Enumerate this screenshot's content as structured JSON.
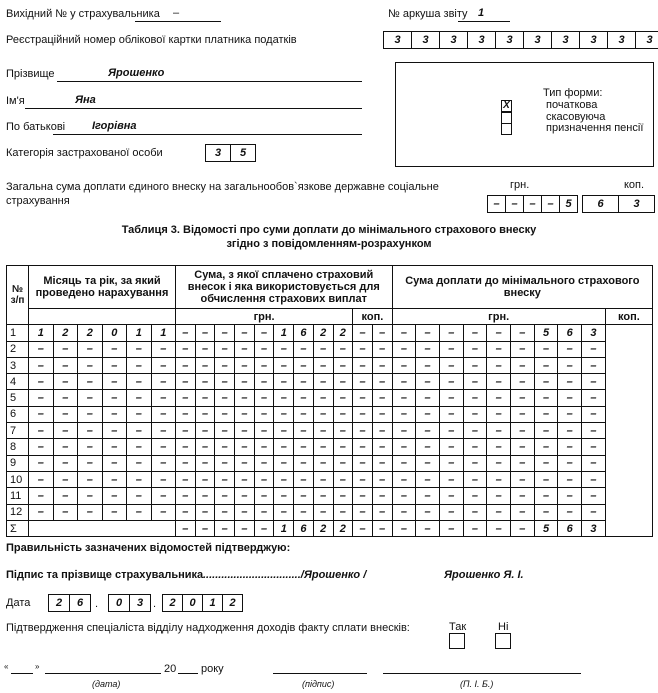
{
  "header": {
    "outgoing_label": "Вихідний № у страхувальника",
    "outgoing_value": "–",
    "sheet_label": "№ аркуша звіту",
    "sheet_value": "1"
  },
  "reg": {
    "label": "Реєстраційний номер облікової картки платника податків",
    "digits": [
      "3",
      "3",
      "3",
      "3",
      "3",
      "3",
      "3",
      "3",
      "3",
      "3"
    ]
  },
  "person": {
    "surname_label": "Прізвище",
    "surname": "Ярошенко",
    "name_label": "Ім'я",
    "name": "Яна",
    "patronymic_label": "По батькові",
    "patronymic": "Ігорівна",
    "category_label": "Категорія застрахованої особи",
    "category": [
      "3",
      "5"
    ]
  },
  "form_type": {
    "title": "Тип форми:",
    "options": [
      {
        "label": "початкова",
        "checked": true,
        "mark": "X"
      },
      {
        "label": "скасовуюча",
        "checked": false
      },
      {
        "label": "призначення пенсії",
        "checked": false
      }
    ]
  },
  "total": {
    "label1": "Загальна сума доплати єдиного внеску на загальнообов`язкове державне соціальне",
    "label2": "страхування",
    "grn_label": "грн.",
    "kop_label": "коп.",
    "grn": [
      "–",
      "–",
      "–",
      "–",
      "5"
    ],
    "kop": [
      "6",
      "3"
    ]
  },
  "table": {
    "title1": "Таблиця 3. Відомості про суми доплати до мінімального страхового внеску",
    "title2": "згідно з повідомленням-розрахунком",
    "col_no": "№ з/п",
    "col_month": "Місяць та рік, за який проведено нарахування",
    "col_sum": "Сума, з якої сплачено страховий внесок і яка використовується для обчислення страхових виплат",
    "col_extra": "Сума доплати до мінімального страхового внеску",
    "grn": "грн.",
    "kop": "коп.",
    "rows": [
      {
        "no": "1",
        "cells": [
          "1",
          "2",
          "2",
          "0",
          "1",
          "1",
          "–",
          "–",
          "–",
          "–",
          "–",
          "1",
          "6",
          "2",
          "2",
          "–",
          "–",
          "–",
          "–",
          "–",
          "–",
          "–",
          "–",
          "5",
          "6",
          "3"
        ]
      },
      {
        "no": "2",
        "cells": [
          "–",
          "–",
          "–",
          "–",
          "–",
          "–",
          "–",
          "–",
          "–",
          "–",
          "–",
          "–",
          "–",
          "–",
          "–",
          "–",
          "–",
          "–",
          "–",
          "–",
          "–",
          "–",
          "–",
          "–",
          "–",
          "–"
        ]
      },
      {
        "no": "3",
        "cells": [
          "–",
          "–",
          "–",
          "–",
          "–",
          "–",
          "–",
          "–",
          "–",
          "–",
          "–",
          "–",
          "–",
          "–",
          "–",
          "–",
          "–",
          "–",
          "–",
          "–",
          "–",
          "–",
          "–",
          "–",
          "–",
          "–"
        ]
      },
      {
        "no": "4",
        "cells": [
          "–",
          "–",
          "–",
          "–",
          "–",
          "–",
          "–",
          "–",
          "–",
          "–",
          "–",
          "–",
          "–",
          "–",
          "–",
          "–",
          "–",
          "–",
          "–",
          "–",
          "–",
          "–",
          "–",
          "–",
          "–",
          "–"
        ]
      },
      {
        "no": "5",
        "cells": [
          "–",
          "–",
          "–",
          "–",
          "–",
          "–",
          "–",
          "–",
          "–",
          "–",
          "–",
          "–",
          "–",
          "–",
          "–",
          "–",
          "–",
          "–",
          "–",
          "–",
          "–",
          "–",
          "–",
          "–",
          "–",
          "–"
        ]
      },
      {
        "no": "6",
        "cells": [
          "–",
          "–",
          "–",
          "–",
          "–",
          "–",
          "–",
          "–",
          "–",
          "–",
          "–",
          "–",
          "–",
          "–",
          "–",
          "–",
          "–",
          "–",
          "–",
          "–",
          "–",
          "–",
          "–",
          "–",
          "–",
          "–"
        ]
      },
      {
        "no": "7",
        "cells": [
          "–",
          "–",
          "–",
          "–",
          "–",
          "–",
          "–",
          "–",
          "–",
          "–",
          "–",
          "–",
          "–",
          "–",
          "–",
          "–",
          "–",
          "–",
          "–",
          "–",
          "–",
          "–",
          "–",
          "–",
          "–",
          "–"
        ]
      },
      {
        "no": "8",
        "cells": [
          "–",
          "–",
          "–",
          "–",
          "–",
          "–",
          "–",
          "–",
          "–",
          "–",
          "–",
          "–",
          "–",
          "–",
          "–",
          "–",
          "–",
          "–",
          "–",
          "–",
          "–",
          "–",
          "–",
          "–",
          "–",
          "–"
        ]
      },
      {
        "no": "9",
        "cells": [
          "–",
          "–",
          "–",
          "–",
          "–",
          "–",
          "–",
          "–",
          "–",
          "–",
          "–",
          "–",
          "–",
          "–",
          "–",
          "–",
          "–",
          "–",
          "–",
          "–",
          "–",
          "–",
          "–",
          "–",
          "–",
          "–"
        ]
      },
      {
        "no": "10",
        "cells": [
          "–",
          "–",
          "–",
          "–",
          "–",
          "–",
          "–",
          "–",
          "–",
          "–",
          "–",
          "–",
          "–",
          "–",
          "–",
          "–",
          "–",
          "–",
          "–",
          "–",
          "–",
          "–",
          "–",
          "–",
          "–",
          "–"
        ]
      },
      {
        "no": "11",
        "cells": [
          "–",
          "–",
          "–",
          "–",
          "–",
          "–",
          "–",
          "–",
          "–",
          "–",
          "–",
          "–",
          "–",
          "–",
          "–",
          "–",
          "–",
          "–",
          "–",
          "–",
          "–",
          "–",
          "–",
          "–",
          "–",
          "–"
        ]
      },
      {
        "no": "12",
        "cells": [
          "–",
          "–",
          "–",
          "–",
          "–",
          "–",
          "–",
          "–",
          "–",
          "–",
          "–",
          "–",
          "–",
          "–",
          "–",
          "–",
          "–",
          "–",
          "–",
          "–",
          "–",
          "–",
          "–",
          "–",
          "–",
          "–"
        ]
      }
    ],
    "sum_row": {
      "no": "Σ",
      "cells": [
        "–",
        "–",
        "–",
        "–",
        "–",
        "1",
        "6",
        "2",
        "2",
        "–",
        "–",
        "–",
        "–",
        "–",
        "–",
        "–",
        "–",
        "5",
        "6",
        "3"
      ]
    }
  },
  "footer": {
    "confirm": "Правильність зазначених відомостей підтверджую:",
    "sign_label": "Підпис та прізвище страхувальника",
    "sign_dots": "................................/Ярошенко /",
    "sign_name": "Ярошенко Я. І.",
    "date_label": "Дата",
    "day": [
      "2",
      "6"
    ],
    "month": [
      "0",
      "3"
    ],
    "year": [
      "2",
      "0",
      "1",
      "2"
    ],
    "dot": ".",
    "specialist": "Підтвердження спеціаліста відділу надходження доходів факту сплати внесків:",
    "yes": "Так",
    "no": "Ні",
    "q_open": "«",
    "q_close": "»",
    "century": "20",
    "year_word": "року",
    "cap_date": "(дата)",
    "cap_sign": "(підпис)",
    "cap_name": "(П. І. Б.)"
  }
}
